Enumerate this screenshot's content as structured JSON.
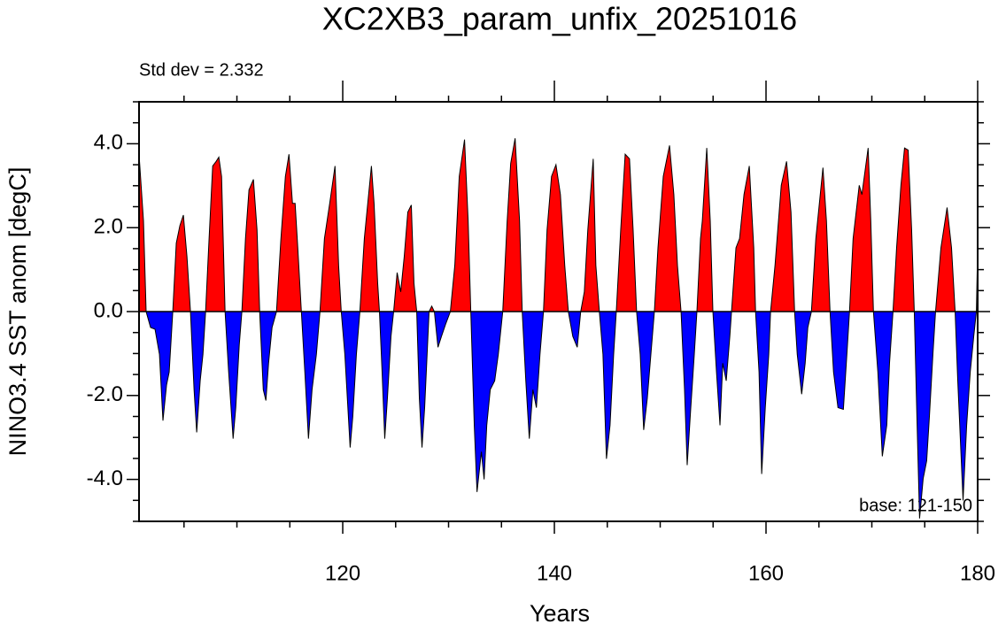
{
  "chart_data": {
    "type": "area",
    "title": "XC2XB3_param_unfix_20251016",
    "subtitle": "Std dev = 2.332",
    "annotation": "base: 121-150",
    "xlabel": "Years",
    "ylabel": "NINO3.4 SST anom [degC]",
    "xlim": [
      100.75,
      180
    ],
    "ylim": [
      -5,
      5
    ],
    "xticks": [
      120,
      140,
      160,
      180
    ],
    "xminorticks": [
      105,
      110,
      115,
      125,
      130,
      135,
      145,
      150,
      155,
      165,
      170,
      175
    ],
    "yticks": [
      {
        "value": -4,
        "label": "-4.0"
      },
      {
        "value": -2,
        "label": "-2.0"
      },
      {
        "value": 0,
        "label": "0.0"
      },
      {
        "value": 2,
        "label": "2.0"
      },
      {
        "value": 4,
        "label": "4.0"
      }
    ],
    "yminorticks": [
      -5,
      -4.5,
      -3.5,
      -3,
      -2.5,
      -1.5,
      -1,
      -0.5,
      0.5,
      1,
      1.5,
      2.5,
      3,
      3.5,
      4.5,
      5
    ],
    "color_above": "#ff0000",
    "color_below": "#0000ff",
    "line_color": "#000000",
    "x": [
      100.75,
      101.17,
      101.42,
      101.84,
      102.26,
      102.68,
      103.01,
      103.35,
      103.6,
      103.94,
      104.27,
      104.61,
      104.94,
      105.28,
      105.61,
      105.95,
      106.2,
      106.53,
      106.79,
      107.04,
      107.37,
      107.71,
      108.04,
      108.29,
      108.55,
      108.88,
      109.22,
      109.64,
      109.89,
      110.22,
      110.47,
      110.81,
      111.14,
      111.56,
      111.9,
      112.15,
      112.49,
      112.74,
      112.99,
      113.32,
      113.74,
      114.16,
      114.58,
      114.92,
      115.25,
      115.5,
      115.75,
      116.09,
      116.42,
      116.76,
      117.1,
      117.51,
      117.85,
      118.27,
      118.77,
      119.27,
      119.61,
      119.86,
      120.2,
      120.7,
      120.95,
      121.29,
      121.62,
      122.04,
      122.71,
      122.96,
      123.3,
      123.47,
      123.72,
      123.97,
      124.22,
      124.56,
      124.81,
      125.14,
      125.48,
      125.81,
      126.15,
      126.48,
      126.73,
      126.99,
      127.24,
      127.49,
      127.74,
      128.16,
      128.41,
      128.66,
      129.0,
      129.33,
      129.75,
      130.17,
      130.59,
      131.01,
      131.51,
      131.85,
      132.1,
      132.43,
      132.69,
      133.1,
      133.36,
      133.61,
      133.94,
      134.36,
      134.7,
      135.12,
      135.54,
      135.87,
      136.29,
      136.71,
      136.96,
      137.3,
      137.63,
      137.97,
      138.3,
      138.64,
      138.97,
      139.31,
      139.73,
      140.15,
      140.57,
      140.98,
      141.32,
      141.74,
      142.16,
      142.49,
      142.83,
      143.16,
      143.67,
      143.92,
      144.25,
      144.59,
      144.92,
      145.26,
      145.6,
      145.85,
      146.27,
      146.69,
      147.1,
      147.44,
      147.77,
      148.11,
      148.44,
      148.78,
      149.12,
      149.45,
      149.79,
      150.29,
      150.88,
      151.29,
      151.63,
      151.97,
      152.3,
      152.55,
      152.89,
      153.22,
      153.47,
      153.81,
      153.98,
      154.4,
      154.73,
      154.98,
      155.32,
      155.65,
      155.91,
      156.24,
      156.58,
      156.74,
      157.16,
      157.5,
      157.92,
      158.42,
      158.84,
      159.01,
      159.34,
      159.59,
      159.93,
      160.26,
      160.43,
      160.85,
      161.44,
      161.94,
      162.36,
      162.7,
      162.95,
      163.37,
      163.7,
      163.95,
      164.29,
      164.71,
      165.38,
      165.71,
      166.05,
      166.38,
      166.8,
      167.31,
      167.64,
      167.89,
      168.23,
      168.81,
      169.06,
      169.4,
      169.65,
      169.9,
      170.15,
      170.57,
      170.99,
      171.41,
      171.67,
      172.0,
      172.34,
      172.75,
      173.09,
      173.43,
      173.76,
      174.01,
      174.26,
      174.51,
      174.85,
      175.18,
      175.44,
      175.77,
      176.02,
      176.53,
      177.11,
      177.53,
      177.87,
      178.12,
      178.62,
      178.96,
      179.3,
      179.63,
      179.88,
      180.0
    ],
    "values": [
      3.75,
      2.16,
      0,
      -0.38,
      -0.42,
      -1.02,
      -2.6,
      -1.75,
      -1.44,
      0,
      1.63,
      2.05,
      2.3,
      1.31,
      0,
      -1.86,
      -2.88,
      -1.65,
      -1.02,
      0,
      1.74,
      3.47,
      3.58,
      3.68,
      3.22,
      0,
      -1.44,
      -3.03,
      -2.29,
      -0.8,
      0,
      1.74,
      2.9,
      3.15,
      1.95,
      0,
      -1.86,
      -2.12,
      -1.23,
      -0.38,
      0,
      1.74,
      3.22,
      3.75,
      2.58,
      2.58,
      1.52,
      0,
      -1.44,
      -3.03,
      -1.86,
      -1.02,
      0,
      1.74,
      2.58,
      3.47,
      1.1,
      0,
      -1.02,
      -3.24,
      -2.5,
      -1.02,
      0,
      1.74,
      3.47,
      2.58,
      0.68,
      0,
      -1.44,
      -3.03,
      -2.07,
      -0.59,
      0,
      0.93,
      0.47,
      1.31,
      2.37,
      2.54,
      0.68,
      0,
      -2.07,
      -3.24,
      -2.29,
      0,
      0.13,
      0,
      -0.85,
      -0.59,
      -0.28,
      0,
      1.1,
      3.22,
      4.1,
      2.16,
      0,
      -2.71,
      -4.3,
      -3.34,
      -4.0,
      -2.71,
      -1.86,
      -1.65,
      -1.02,
      0,
      2.16,
      3.53,
      4.13,
      2.16,
      0,
      -1.65,
      -3.03,
      -1.86,
      -2.29,
      -1.02,
      0,
      1.95,
      3.22,
      3.5,
      2.79,
      1.1,
      0,
      -0.59,
      -0.85,
      0,
      0.47,
      1.95,
      3.64,
      1.1,
      0,
      -1.02,
      -3.51,
      -2.71,
      -1.02,
      0,
      1.95,
      3.75,
      3.64,
      1.95,
      0,
      -1.02,
      -2.82,
      -2.07,
      -1.02,
      0,
      1.52,
      3.22,
      3.96,
      2.79,
      1.1,
      0,
      -1.86,
      -3.66,
      -2.29,
      -1.02,
      0,
      1.74,
      2.16,
      3.9,
      2.16,
      0,
      -1.44,
      -2.71,
      -1.23,
      -1.65,
      -0.59,
      0,
      1.52,
      1.74,
      2.79,
      3.47,
      1.52,
      0,
      -1.44,
      -3.87,
      -2.29,
      -1.02,
      0,
      1.1,
      3.01,
      3.58,
      2.37,
      0,
      -1.02,
      -1.97,
      -1.23,
      -0.38,
      0,
      1.74,
      3.43,
      2.16,
      0,
      -1.44,
      -2.29,
      -2.33,
      -1.02,
      0,
      1.74,
      3.01,
      2.79,
      3.43,
      3.9,
      2.16,
      0,
      -1.44,
      -3.45,
      -2.71,
      -1.23,
      0,
      1.52,
      3.01,
      3.9,
      3.85,
      1.95,
      0,
      -2.5,
      -4.93,
      -3.98,
      -3.56,
      -2.5,
      -1.02,
      0,
      1.52,
      2.48,
      1.52,
      0,
      -1.65,
      -4.5,
      -2.71,
      -1.44,
      -0.59,
      0,
      1.52
    ]
  }
}
